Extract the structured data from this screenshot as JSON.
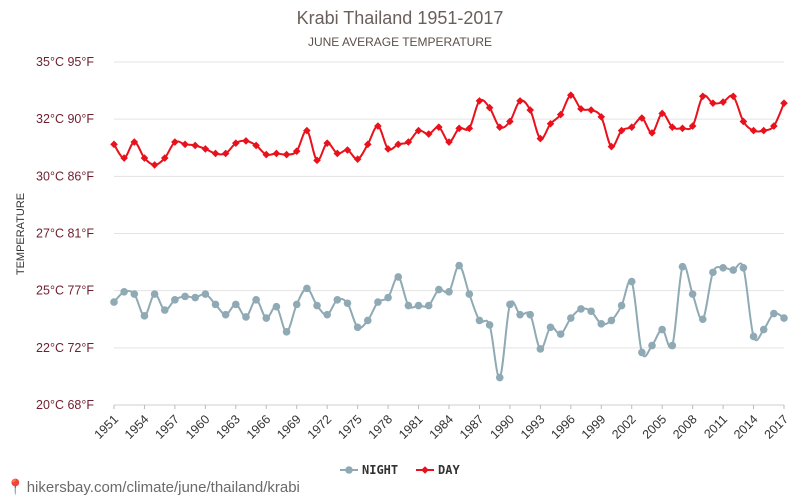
{
  "footer": {
    "text": "hikersbay.com/climate/june/thailand/krabi",
    "icon": "location-pin-icon"
  },
  "chart_data": {
    "type": "line",
    "title": "Krabi Thailand 1951-2017",
    "subtitle": "JUNE AVERAGE TEMPERATURE",
    "ylabel": "TEMPERATURE",
    "xlabel": "",
    "ylim": [
      20,
      35
    ],
    "yticks": [
      {
        "value": 20,
        "label": "20°C 68°F"
      },
      {
        "value": 22.5,
        "label": "22°C 72°F"
      },
      {
        "value": 25,
        "label": "25°C 77°F"
      },
      {
        "value": 27.5,
        "label": "27°C 81°F"
      },
      {
        "value": 30,
        "label": "30°C 86°F"
      },
      {
        "value": 32.5,
        "label": "32°C 90°F"
      },
      {
        "value": 35,
        "label": "35°C 95°F"
      }
    ],
    "xticks": [
      "1951",
      "1954",
      "1957",
      "1960",
      "1963",
      "1966",
      "1969",
      "1972",
      "1975",
      "1978",
      "1981",
      "1984",
      "1987",
      "1990",
      "1993",
      "1996",
      "1999",
      "2002",
      "2005",
      "2008",
      "2011",
      "2014",
      "2017"
    ],
    "x": [
      1951,
      1952,
      1953,
      1954,
      1955,
      1956,
      1957,
      1958,
      1959,
      1960,
      1961,
      1962,
      1963,
      1964,
      1965,
      1966,
      1967,
      1968,
      1969,
      1970,
      1971,
      1972,
      1973,
      1974,
      1975,
      1976,
      1977,
      1978,
      1979,
      1980,
      1981,
      1982,
      1983,
      1984,
      1985,
      1986,
      1987,
      1988,
      1989,
      1990,
      1991,
      1992,
      1993,
      1994,
      1995,
      1996,
      1997,
      1998,
      1999,
      2000,
      2001,
      2002,
      2003,
      2004,
      2005,
      2006,
      2007,
      2008,
      2009,
      2010,
      2011,
      2012,
      2013,
      2014,
      2015,
      2016,
      2017
    ],
    "grid": true,
    "legend_position": "bottom",
    "series": [
      {
        "name": "NIGHT",
        "color": "#8faab4",
        "values": [
          24.5,
          24.95,
          24.85,
          23.9,
          24.85,
          24.15,
          24.6,
          24.75,
          24.7,
          24.85,
          24.4,
          23.95,
          24.4,
          23.85,
          24.6,
          23.8,
          24.3,
          23.2,
          24.4,
          25.1,
          24.35,
          23.95,
          24.6,
          24.45,
          23.4,
          23.7,
          24.5,
          24.7,
          25.6,
          24.35,
          24.35,
          24.35,
          25.05,
          24.95,
          26.1,
          24.85,
          23.7,
          23.5,
          21.2,
          24.4,
          23.95,
          23.95,
          22.45,
          23.4,
          23.1,
          23.8,
          24.2,
          24.1,
          23.55,
          23.7,
          24.35,
          25.4,
          22.3,
          22.6,
          23.3,
          22.6,
          26.05,
          24.85,
          23.75,
          25.8,
          26.0,
          25.9,
          26.0,
          23.0,
          23.3,
          24.0,
          23.8
        ]
      },
      {
        "name": "DAY",
        "color": "#e8111c",
        "values": [
          31.4,
          30.8,
          31.5,
          30.8,
          30.5,
          30.8,
          31.5,
          31.4,
          31.35,
          31.2,
          31.0,
          31.0,
          31.45,
          31.55,
          31.35,
          30.95,
          31.0,
          30.95,
          31.1,
          32.0,
          30.7,
          31.45,
          31.0,
          31.15,
          30.75,
          31.4,
          32.2,
          31.2,
          31.4,
          31.5,
          32.0,
          31.85,
          32.15,
          31.5,
          32.1,
          32.1,
          33.3,
          33.0,
          32.15,
          32.4,
          33.3,
          32.9,
          31.65,
          32.3,
          32.7,
          33.55,
          32.95,
          32.9,
          32.6,
          31.3,
          32.0,
          32.15,
          32.55,
          31.9,
          32.75,
          32.15,
          32.1,
          32.2,
          33.5,
          33.2,
          33.25,
          33.5,
          32.4,
          32.0,
          32.0,
          32.2,
          33.2
        ]
      }
    ]
  }
}
